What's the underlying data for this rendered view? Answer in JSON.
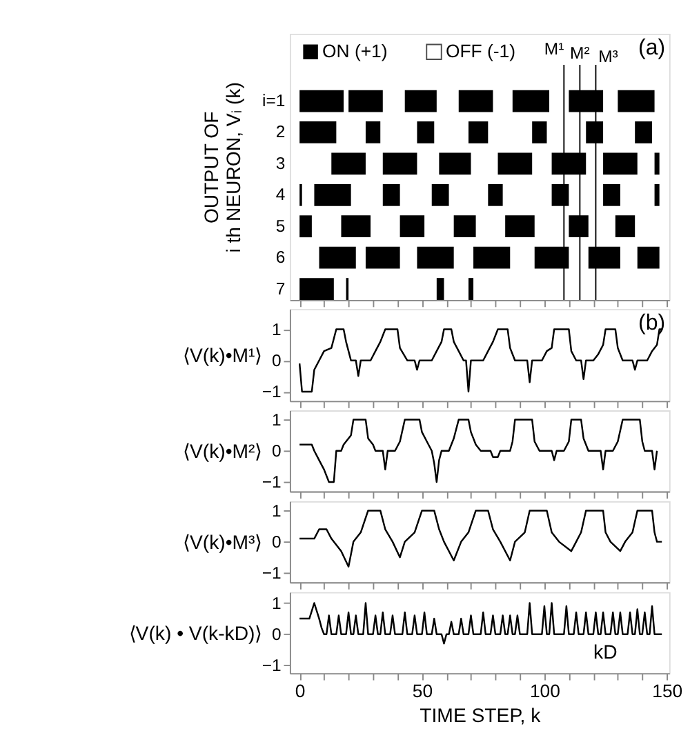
{
  "chart_data": [
    {
      "type": "bar",
      "orientation": "horizontal",
      "ylabel": "OUTPUT OF\ni th NEURON, Vᵢ (k)",
      "categories": [
        "i=1",
        "2",
        "3",
        "4",
        "5",
        "6",
        "7"
      ],
      "xlim": [
        -4,
        151
      ],
      "xticks": [
        {
          "value": 0,
          "label": null
        },
        {
          "value": 10,
          "label": null
        },
        {
          "value": 20,
          "label": null
        },
        {
          "value": 30,
          "label": null
        },
        {
          "value": 40,
          "label": null
        },
        {
          "value": 50,
          "label": null
        },
        {
          "value": 60,
          "label": null
        },
        {
          "value": 70,
          "label": null
        },
        {
          "value": 80,
          "label": null
        },
        {
          "value": 90,
          "label": null
        },
        {
          "value": 100,
          "label": null
        },
        {
          "value": 110,
          "label": null
        },
        {
          "value": 120,
          "label": null
        },
        {
          "value": 130,
          "label": null
        },
        {
          "value": 140,
          "label": null
        },
        {
          "value": 150,
          "label": null
        }
      ],
      "tick_labels": "y",
      "legend": "top left",
      "annotations": [
        "OFF (-1)",
        "(a)"
      ],
      "ref_lines": [
        {
          "axis": "x",
          "value": 108,
          "label": "M¹"
        },
        {
          "axis": "x",
          "value": 114.5,
          "label": "M²"
        },
        {
          "axis": "x",
          "value": 121,
          "label": "M³"
        }
      ],
      "series": [
        {
          "name": "ON (+1)",
          "color": "#000000",
          "base": [
            0,
            0,
            13,
            0,
            0,
            8,
            0
          ],
          "values": [
            18,
            15,
            14,
            1,
            5,
            15,
            14
          ]
        },
        {
          "color": "#000000",
          "base": [
            20,
            27,
            34,
            6,
            17,
            27,
            19
          ],
          "values": [
            14,
            6,
            14,
            15,
            12,
            14,
            1
          ]
        },
        {
          "color": "#000000",
          "base": [
            43,
            48,
            57,
            34,
            41,
            48,
            56
          ],
          "values": [
            13,
            7,
            13,
            7,
            10,
            15,
            3
          ]
        },
        {
          "color": "#000000",
          "base": [
            65,
            69,
            81,
            54,
            63,
            71,
            69
          ],
          "values": [
            14,
            8,
            14,
            7,
            9,
            15,
            2
          ]
        },
        {
          "color": "#000000",
          "base": [
            87,
            95,
            103,
            77,
            84,
            96,
            null
          ],
          "values": [
            15,
            6,
            14,
            6,
            12,
            14,
            null
          ]
        },
        {
          "color": "#000000",
          "base": [
            110,
            117,
            124,
            103,
            110,
            118,
            null
          ],
          "values": [
            14,
            7,
            14,
            7,
            8,
            13,
            null
          ]
        },
        {
          "color": "#000000",
          "base": [
            130,
            137,
            145,
            124,
            129,
            138,
            null
          ],
          "values": [
            15,
            7,
            2,
            7,
            8,
            9,
            null
          ]
        },
        {
          "color": "#000000",
          "base": [
            null,
            null,
            null,
            145,
            null,
            null,
            null
          ],
          "values": [
            null,
            null,
            null,
            2,
            null,
            null,
            null
          ]
        }
      ]
    },
    {
      "type": "line",
      "ylabel": "⟨V(k)•M¹⟩",
      "xlim": [
        -4,
        151
      ],
      "ylim": [
        -1.3,
        1.65
      ],
      "yticks": [
        -1,
        0,
        1
      ],
      "xticks": [
        {
          "value": 0,
          "label": null
        },
        {
          "value": 10,
          "label": null
        },
        {
          "value": 20,
          "label": null
        },
        {
          "value": 30,
          "label": null
        },
        {
          "value": 40,
          "label": null
        },
        {
          "value": 50,
          "label": null
        },
        {
          "value": 60,
          "label": null
        },
        {
          "value": 70,
          "label": null
        },
        {
          "value": 80,
          "label": null
        },
        {
          "value": 90,
          "label": null
        },
        {
          "value": 100,
          "label": null
        },
        {
          "value": 110,
          "label": null
        },
        {
          "value": 120,
          "label": null
        },
        {
          "value": 130,
          "label": null
        },
        {
          "value": 140,
          "label": null
        },
        {
          "value": 150,
          "label": null
        }
      ],
      "tick_labels": "y",
      "annotations": [
        "(b)"
      ],
      "series": [
        {
          "color": "#000000",
          "x": [
            0,
            1,
            5,
            6,
            8,
            10,
            13,
            15,
            18,
            19,
            20,
            21,
            23,
            24,
            25,
            29,
            31,
            33,
            35,
            40,
            41,
            44,
            47,
            48,
            49,
            54,
            56,
            58,
            59,
            62,
            63,
            65,
            67,
            68,
            69,
            70,
            75,
            77,
            79,
            81,
            85,
            86,
            88,
            93,
            94,
            95,
            99,
            101,
            103,
            104,
            110,
            111,
            113,
            115,
            116,
            117,
            120,
            122,
            124,
            125,
            129,
            130,
            132,
            136,
            137,
            138,
            142,
            144,
            146,
            147,
            148
          ],
          "values": [
            -0.1,
            -1,
            -1,
            -0.3,
            0,
            0.3,
            0.4,
            1,
            1,
            0.6,
            0.3,
            0,
            0,
            -0.5,
            0,
            0,
            0.3,
            0.6,
            1,
            1,
            0.4,
            0,
            0,
            -0.3,
            0,
            0,
            0.3,
            0.6,
            1,
            1,
            0.6,
            0.3,
            0,
            0,
            -1,
            0,
            0,
            0.3,
            0.6,
            1,
            1,
            0.4,
            0,
            0,
            -0.7,
            0,
            0,
            0.3,
            0.4,
            1,
            1,
            0.3,
            0,
            0,
            -0.6,
            0,
            0,
            0.2,
            0.5,
            1,
            1,
            0.4,
            0,
            0,
            -0.3,
            0,
            0,
            0.3,
            0.5,
            1,
            1
          ]
        }
      ]
    },
    {
      "type": "line",
      "ylabel": "⟨V(k)•M²⟩",
      "xlim": [
        -4,
        151
      ],
      "ylim": [
        -1.3,
        1.3
      ],
      "yticks": [
        -1,
        0,
        1
      ],
      "xticks": [
        {
          "value": 0,
          "label": null
        },
        {
          "value": 10,
          "label": null
        },
        {
          "value": 20,
          "label": null
        },
        {
          "value": 30,
          "label": null
        },
        {
          "value": 40,
          "label": null
        },
        {
          "value": 50,
          "label": null
        },
        {
          "value": 60,
          "label": null
        },
        {
          "value": 70,
          "label": null
        },
        {
          "value": 80,
          "label": null
        },
        {
          "value": 90,
          "label": null
        },
        {
          "value": 100,
          "label": null
        },
        {
          "value": 110,
          "label": null
        },
        {
          "value": 120,
          "label": null
        },
        {
          "value": 130,
          "label": null
        },
        {
          "value": 140,
          "label": null
        },
        {
          "value": 150,
          "label": null
        }
      ],
      "tick_labels": "y",
      "series": [
        {
          "color": "#000000",
          "x": [
            0,
            5,
            6,
            8,
            10,
            12,
            14,
            15,
            17,
            18,
            19,
            21,
            22,
            27,
            28,
            30,
            31,
            34,
            35,
            36,
            39,
            41,
            43,
            49,
            50,
            52,
            54,
            55,
            56,
            57,
            58,
            61,
            63,
            65,
            69,
            70,
            72,
            74,
            78,
            79,
            81,
            82,
            86,
            87,
            88,
            95,
            96,
            98,
            103,
            104,
            105,
            108,
            110,
            111,
            115,
            116,
            118,
            123,
            124,
            125,
            128,
            130,
            132,
            139,
            140,
            141,
            144,
            145,
            146
          ],
          "values": [
            0.2,
            0.2,
            0,
            -0.3,
            -0.6,
            -1,
            -1,
            0,
            0,
            0.2,
            0.3,
            0.5,
            1,
            1,
            0.4,
            0.2,
            0,
            0,
            -0.6,
            0,
            0,
            0.3,
            1,
            1,
            0.6,
            0.3,
            0,
            -0.4,
            -1,
            -0.3,
            0,
            0,
            0.4,
            1,
            1,
            0.6,
            0.2,
            0,
            0,
            -0.2,
            -0.2,
            0,
            0,
            0.3,
            1,
            1,
            0.3,
            0,
            0,
            -0.3,
            0,
            0,
            0.3,
            1,
            1,
            0.4,
            0,
            0,
            -0.6,
            0,
            0,
            0.3,
            1,
            1,
            0.3,
            0,
            0,
            -0.6,
            0
          ]
        }
      ]
    },
    {
      "type": "line",
      "ylabel": "⟨V(k)•M³⟩",
      "xlim": [
        -4,
        151
      ],
      "ylim": [
        -1.3,
        1.3
      ],
      "yticks": [
        -1,
        0,
        1
      ],
      "xticks": [
        {
          "value": 0,
          "label": null
        },
        {
          "value": 10,
          "label": null
        },
        {
          "value": 20,
          "label": null
        },
        {
          "value": 30,
          "label": null
        },
        {
          "value": 40,
          "label": null
        },
        {
          "value": 50,
          "label": null
        },
        {
          "value": 60,
          "label": null
        },
        {
          "value": 70,
          "label": null
        },
        {
          "value": 80,
          "label": null
        },
        {
          "value": 90,
          "label": null
        },
        {
          "value": 100,
          "label": null
        },
        {
          "value": 110,
          "label": null
        },
        {
          "value": 120,
          "label": null
        },
        {
          "value": 130,
          "label": null
        },
        {
          "value": 140,
          "label": null
        },
        {
          "value": 150,
          "label": null
        }
      ],
      "tick_labels": "y",
      "series": [
        {
          "color": "#000000",
          "x": [
            0,
            6,
            8,
            11,
            13,
            17,
            20,
            22,
            25,
            28,
            33,
            35,
            38,
            41,
            43,
            47,
            50,
            55,
            57,
            59,
            63,
            66,
            69,
            72,
            77,
            79,
            82,
            86,
            88,
            92,
            94,
            101,
            103,
            106,
            111,
            113,
            115,
            117,
            124,
            125,
            127,
            131,
            133,
            136,
            138,
            144,
            145,
            146,
            148
          ],
          "values": [
            0.1,
            0.1,
            0.4,
            0.4,
            0.1,
            -0.3,
            -0.8,
            0,
            0.3,
            1,
            1,
            0.4,
            0,
            -0.5,
            0,
            0.3,
            1,
            1,
            0.4,
            0,
            -0.6,
            0,
            0.3,
            1,
            1,
            0.4,
            0,
            -0.6,
            0,
            0.3,
            1,
            1,
            0.3,
            0,
            -0.3,
            0,
            0.3,
            1,
            1,
            0.3,
            0,
            -0.3,
            0,
            0.3,
            1,
            1,
            0.3,
            0,
            0
          ]
        }
      ]
    },
    {
      "type": "line",
      "ylabel": "⟨V(k) • V(k-kD)⟩",
      "xlabel": "TIME STEP, k",
      "xlim": [
        -4,
        151
      ],
      "ylim": [
        -1.25,
        1.35
      ],
      "yticks": [
        -1,
        0,
        1
      ],
      "xticks": [
        0,
        {
          "value": 10,
          "label": null
        },
        {
          "value": 20,
          "label": null
        },
        {
          "value": 30,
          "label": null
        },
        {
          "value": 40,
          "label": null
        },
        50,
        {
          "value": 60,
          "label": null
        },
        {
          "value": 70,
          "label": null
        },
        {
          "value": 80,
          "label": null
        },
        {
          "value": 90,
          "label": null
        },
        100,
        {
          "value": 110,
          "label": null
        },
        {
          "value": 120,
          "label": null
        },
        {
          "value": 130,
          "label": null
        },
        {
          "value": 140,
          "label": null
        },
        150
      ],
      "annotations": [
        "kD"
      ],
      "series": [
        {
          "color": "#000000",
          "x": [
            0,
            4,
            6,
            8,
            9,
            10,
            11,
            12,
            13,
            15,
            16,
            17,
            19,
            20,
            21,
            22,
            23,
            24,
            26,
            27,
            28,
            30,
            31,
            32,
            33,
            34,
            35,
            37,
            38,
            39,
            42,
            43,
            44,
            46,
            47,
            48,
            50,
            51,
            52,
            54,
            55,
            56,
            58,
            59,
            60,
            61,
            62,
            63,
            65,
            66,
            67,
            69,
            70,
            71,
            74,
            75,
            76,
            78,
            79,
            80,
            82,
            83,
            84,
            85,
            86,
            87,
            88,
            89,
            90,
            93,
            94,
            95,
            99,
            100,
            101,
            102,
            103,
            104,
            108,
            109,
            110,
            112,
            113,
            114,
            116,
            117,
            118,
            120,
            121,
            122,
            123,
            124,
            125,
            127,
            128,
            129,
            130,
            131,
            132,
            134,
            135,
            136,
            137,
            138,
            139,
            140,
            141,
            142,
            143,
            144,
            145,
            148
          ],
          "values": [
            0.5,
            0.5,
            1.0,
            0.5,
            0.2,
            0,
            0,
            0.6,
            0,
            0,
            0.6,
            0,
            0,
            0.7,
            0,
            0,
            0.6,
            0,
            0,
            1.0,
            0,
            0,
            0.6,
            0,
            0,
            0.7,
            0,
            0,
            0.6,
            0,
            0,
            0.7,
            0,
            0,
            0.6,
            0,
            0,
            0.7,
            0,
            0,
            0.5,
            0,
            0,
            -0.3,
            0,
            0,
            0.4,
            0,
            0,
            0.5,
            0,
            0,
            0.6,
            0,
            0,
            0.7,
            0,
            0,
            0.6,
            0,
            0,
            0.6,
            0,
            0,
            0.6,
            0,
            0,
            0.6,
            0,
            0,
            1.0,
            0,
            0,
            0.9,
            0,
            0,
            1.0,
            0,
            0,
            0.9,
            0,
            0,
            0.7,
            0,
            0,
            0.7,
            0,
            0,
            0.7,
            0,
            0,
            0.7,
            0,
            0,
            0.7,
            0,
            0,
            0.7,
            0,
            0,
            0.7,
            0,
            0,
            0.8,
            0,
            0,
            0.7,
            0,
            0,
            0.9,
            0,
            0
          ]
        }
      ]
    }
  ]
}
